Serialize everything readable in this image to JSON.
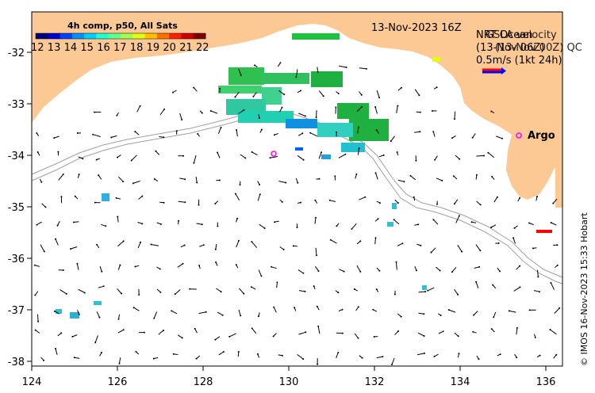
{
  "title_date": "13-Nov-2023 16Z",
  "colorbar": {
    "title": "4h comp, p50, All Sats",
    "ticks": [
      "12",
      "13",
      "14",
      "15",
      "16",
      "17",
      "18",
      "19",
      "20",
      "21",
      "22"
    ],
    "colors": [
      "#00007f",
      "#0000d0",
      "#0040ff",
      "#0090ff",
      "#00d0ff",
      "#20ffd0",
      "#60ff90",
      "#a0ff50",
      "#e0ff10",
      "#ffc000",
      "#ff7000",
      "#ff2000",
      "#d00000",
      "#800000"
    ]
  },
  "legend": {
    "line1a": "NRT Ocean",
    "line1b": "GSLA velocity",
    "line2a": "(13-Nov 06Z)",
    "line2b": "(13-Nov 00Z) QC",
    "speed": "0.5m/s (1kt 24h)",
    "arrow_red": "#ff0000",
    "arrow_blue": "#0000ff"
  },
  "argo": {
    "label": "Argo",
    "color": "#ff00ff"
  },
  "land_color": "#fcc894",
  "x_axis": {
    "ticks": [
      "124",
      "126",
      "128",
      "130",
      "132",
      "134",
      "136"
    ]
  },
  "y_axis": {
    "ticks": [
      "-32",
      "-33",
      "-34",
      "-35",
      "-36",
      "-37",
      "-38"
    ]
  },
  "credit": "© IMOS 16-Nov-2023 15:33 Hobart"
}
